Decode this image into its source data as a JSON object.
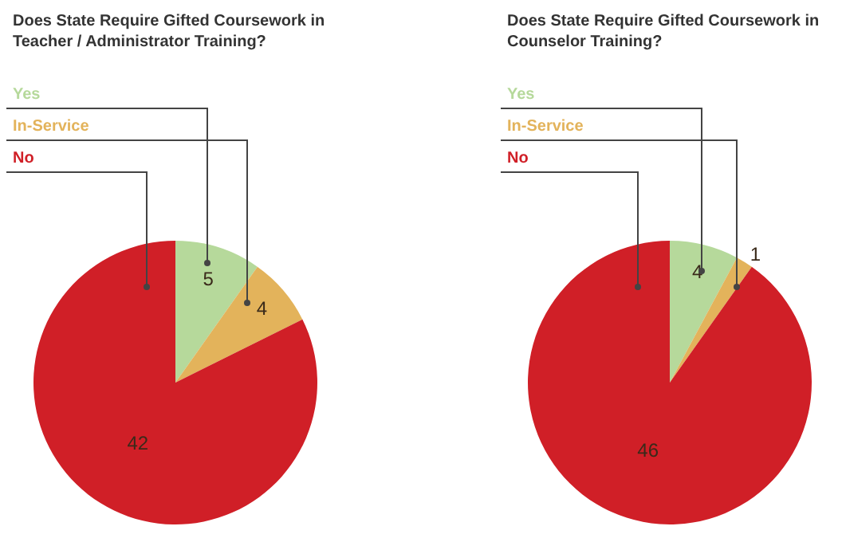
{
  "chart_data": [
    {
      "type": "pie",
      "title": "Does State Require Gifted Coursework in\nTeacher / Administrator Training?",
      "categories": [
        "Yes",
        "In-Service",
        "No"
      ],
      "values": [
        5,
        4,
        42
      ],
      "colors": [
        "#b6d99b",
        "#e3b35b",
        "#d01f27"
      ],
      "data_labels": true
    },
    {
      "type": "pie",
      "title": "Does State Require Gifted Coursework in\nCounselor Training?",
      "categories": [
        "Yes",
        "In-Service",
        "No"
      ],
      "values": [
        4,
        1,
        46
      ],
      "colors": [
        "#b6d99b",
        "#e3b35b",
        "#d01f27"
      ],
      "data_labels": true
    }
  ]
}
